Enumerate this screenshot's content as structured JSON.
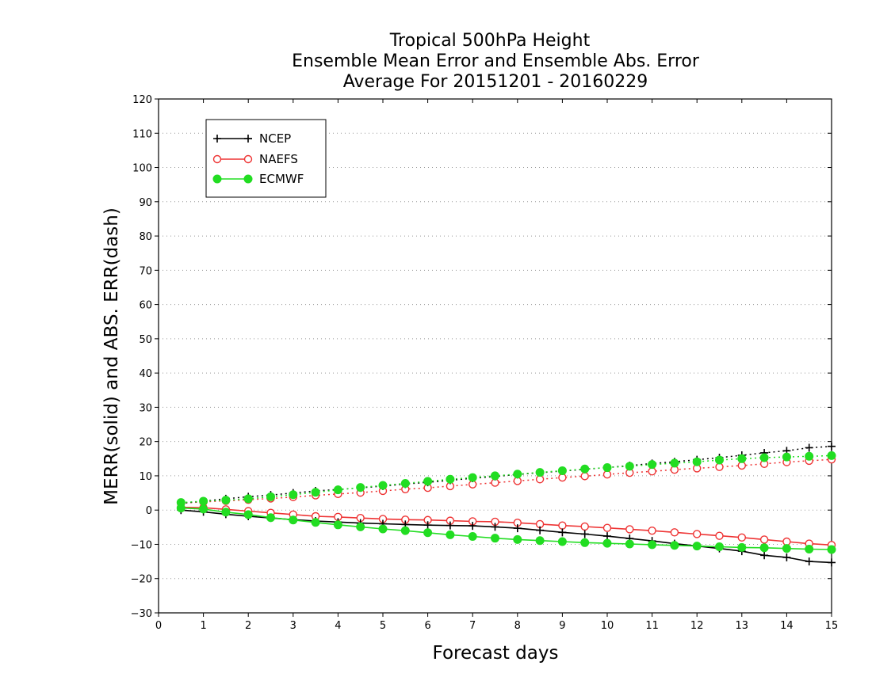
{
  "chart_data": {
    "type": "line",
    "title": [
      "Tropical 500hPa Height",
      "Ensemble Mean Error and Ensemble Abs. Error",
      "Average For 20151201 - 20160229"
    ],
    "xlabel": "Forecast days",
    "ylabel": "MERR(solid) and ABS. ERR(dash)",
    "xlim": [
      0,
      15
    ],
    "ylim": [
      -30,
      120
    ],
    "xticks": [
      0,
      1,
      2,
      3,
      4,
      5,
      6,
      7,
      8,
      9,
      10,
      11,
      12,
      13,
      14,
      15
    ],
    "yticks": [
      -30,
      -20,
      -10,
      0,
      10,
      20,
      30,
      40,
      50,
      60,
      70,
      80,
      90,
      100,
      110,
      120
    ],
    "grid": "horizontal dotted",
    "legend_position": "top-left",
    "x": [
      0.5,
      1.0,
      1.5,
      2.0,
      2.5,
      3.0,
      3.5,
      4.0,
      4.5,
      5.0,
      5.5,
      6.0,
      6.5,
      7.0,
      7.5,
      8.0,
      8.5,
      9.0,
      9.5,
      10.0,
      10.5,
      11.0,
      11.5,
      12.0,
      12.5,
      13.0,
      13.5,
      14.0,
      14.5,
      15.0
    ],
    "series": [
      {
        "name": "NCEP",
        "color": "#000000",
        "marker": "plus",
        "merr": [
          0,
          -0.5,
          -1.2,
          -1.8,
          -2.3,
          -2.8,
          -3.2,
          -3.5,
          -3.8,
          -4.0,
          -4.2,
          -4.4,
          -4.5,
          -4.6,
          -4.9,
          -5.3,
          -5.9,
          -6.5,
          -7.0,
          -7.6,
          -8.3,
          -9.0,
          -9.8,
          -10.5,
          -11.2,
          -12.0,
          -13.2,
          -13.8,
          -15.0,
          -15.3
        ],
        "abs_err": [
          2.0,
          2.6,
          3.3,
          3.9,
          4.4,
          5.0,
          5.6,
          6.0,
          6.5,
          7.0,
          7.6,
          8.1,
          8.7,
          9.3,
          9.8,
          10.4,
          10.9,
          11.4,
          11.9,
          12.4,
          13.0,
          13.6,
          14.1,
          14.7,
          15.3,
          16.0,
          16.7,
          17.3,
          18.2,
          18.6
        ]
      },
      {
        "name": "NAEFS",
        "color": "#ee3333",
        "marker": "open-circle",
        "merr": [
          0.8,
          0.7,
          0.2,
          -0.3,
          -0.8,
          -1.3,
          -1.8,
          -2.0,
          -2.3,
          -2.6,
          -2.8,
          -2.9,
          -3.1,
          -3.3,
          -3.4,
          -3.7,
          -4.1,
          -4.5,
          -4.8,
          -5.2,
          -5.6,
          -6.0,
          -6.5,
          -7.0,
          -7.5,
          -8.0,
          -8.6,
          -9.2,
          -9.8,
          -10.2
        ],
        "abs_err": [
          2.0,
          2.4,
          2.7,
          3.0,
          3.4,
          3.8,
          4.3,
          4.7,
          5.1,
          5.6,
          6.1,
          6.5,
          7.0,
          7.5,
          8.0,
          8.5,
          9.0,
          9.5,
          9.9,
          10.4,
          10.9,
          11.3,
          11.8,
          12.2,
          12.6,
          13.0,
          13.5,
          14.0,
          14.4,
          14.8
        ]
      },
      {
        "name": "ECMWF",
        "color": "#22dd22",
        "marker": "filled-circle",
        "merr": [
          0.6,
          0.3,
          -0.6,
          -1.3,
          -2.2,
          -2.9,
          -3.6,
          -4.3,
          -4.9,
          -5.5,
          -6.0,
          -6.6,
          -7.2,
          -7.7,
          -8.2,
          -8.6,
          -8.9,
          -9.2,
          -9.5,
          -9.7,
          -9.9,
          -10.1,
          -10.3,
          -10.5,
          -10.7,
          -10.9,
          -11.0,
          -11.2,
          -11.4,
          -11.5
        ],
        "abs_err": [
          2.2,
          2.6,
          2.9,
          3.3,
          3.9,
          4.5,
          5.2,
          5.9,
          6.6,
          7.2,
          7.8,
          8.4,
          9.0,
          9.5,
          10.0,
          10.5,
          11.0,
          11.5,
          12.0,
          12.4,
          12.8,
          13.3,
          13.7,
          14.1,
          14.6,
          15.0,
          15.3,
          15.5,
          15.7,
          15.9
        ]
      }
    ]
  }
}
